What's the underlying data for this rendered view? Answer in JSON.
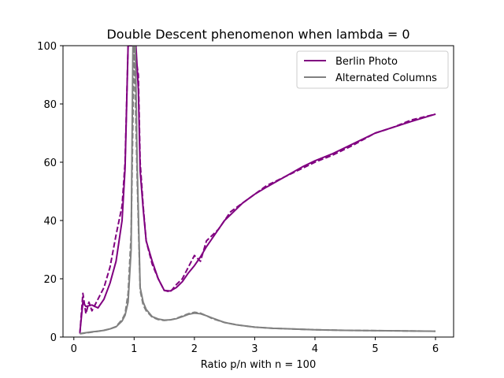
{
  "chart_data": {
    "type": "line",
    "title": "Double Descent phenomenon when lambda = 0",
    "xlabel": "Ratio p/n with n = 100",
    "ylabel": "",
    "xlim": [
      -0.18,
      6.3
    ],
    "ylim": [
      0,
      100
    ],
    "xticks": [
      0,
      1,
      2,
      3,
      4,
      5,
      6
    ],
    "yticks": [
      0,
      20,
      40,
      60,
      80,
      100
    ],
    "grid": false,
    "legend_position": "top-right",
    "legend": [
      {
        "label": "Berlin Photo",
        "color": "#800080"
      },
      {
        "label": "Alternated Columns",
        "color": "#808080"
      }
    ],
    "series": [
      {
        "name": "Berlin Photo",
        "color": "#800080",
        "style": "solid",
        "x": [
          0.1,
          0.15,
          0.2,
          0.3,
          0.4,
          0.5,
          0.6,
          0.7,
          0.8,
          0.85,
          0.9,
          0.93,
          0.97,
          1.0,
          1.03,
          1.07,
          1.1,
          1.15,
          1.2,
          1.3,
          1.4,
          1.5,
          1.6,
          1.7,
          1.8,
          1.9,
          2.0,
          2.1,
          2.2,
          2.3,
          2.4,
          2.5,
          2.6,
          2.8,
          3.0,
          3.2,
          3.5,
          3.8,
          4.0,
          4.3,
          4.6,
          5.0,
          5.3,
          5.6,
          6.0
        ],
        "y": [
          1.5,
          12,
          10.5,
          11,
          10,
          13,
          18.5,
          26,
          40,
          58,
          100,
          100,
          100,
          100,
          100,
          85,
          57,
          44,
          33,
          26,
          20,
          16,
          15.8,
          17,
          19,
          22,
          24.5,
          27.5,
          31,
          34,
          37,
          40,
          42,
          46,
          49,
          51.5,
          55,
          58.5,
          60.5,
          63,
          66,
          70,
          72,
          74,
          76.5
        ]
      },
      {
        "name": "",
        "color": "#800080",
        "style": "dashed",
        "x": [
          0.1,
          0.15,
          0.2,
          0.25,
          0.3,
          0.4,
          0.5,
          0.6,
          0.7,
          0.8,
          0.85,
          0.9,
          0.93,
          1.0,
          1.07,
          1.1,
          1.15,
          1.2,
          1.3,
          1.4,
          1.5,
          1.6,
          1.7,
          1.8,
          1.9,
          2.0,
          2.1,
          2.2,
          2.3,
          2.4,
          2.5,
          2.6,
          2.8,
          3.0,
          3.2,
          3.5,
          3.8,
          4.0,
          4.3,
          4.6,
          5.0,
          5.3,
          5.6,
          6.0
        ],
        "y": [
          1.2,
          15,
          8,
          12,
          9,
          13,
          17,
          24,
          35,
          45,
          60,
          100,
          100,
          100,
          90,
          60,
          45,
          33,
          25,
          20,
          16,
          15.5,
          18,
          20,
          24,
          28,
          26,
          33,
          35,
          37,
          40,
          43,
          46,
          49,
          52,
          55,
          58,
          60,
          62.5,
          65.5,
          70,
          72,
          74.5,
          76.5
        ]
      },
      {
        "name": "Alternated Columns",
        "color": "#808080",
        "style": "solid",
        "x": [
          0.1,
          0.2,
          0.3,
          0.4,
          0.5,
          0.6,
          0.7,
          0.8,
          0.85,
          0.9,
          0.95,
          0.98,
          1.0,
          1.02,
          1.05,
          1.1,
          1.15,
          1.2,
          1.3,
          1.4,
          1.5,
          1.6,
          1.7,
          1.8,
          1.9,
          2.0,
          2.1,
          2.2,
          2.3,
          2.5,
          2.7,
          3.0,
          3.3,
          3.6,
          4.0,
          4.5,
          5.0,
          5.5,
          6.0
        ],
        "y": [
          1.2,
          1.5,
          1.8,
          2.0,
          2.3,
          2.8,
          3.5,
          5.5,
          7.5,
          12,
          30,
          100,
          100,
          100,
          60,
          17,
          12,
          9.5,
          7,
          6.2,
          5.8,
          5.9,
          6.3,
          7,
          7.8,
          8.2,
          8,
          7.3,
          6.5,
          5,
          4.2,
          3.4,
          3,
          2.8,
          2.5,
          2.3,
          2.2,
          2.1,
          2.0
        ]
      },
      {
        "name": "",
        "color": "#808080",
        "style": "dashed",
        "x": [
          0.1,
          0.2,
          0.3,
          0.4,
          0.5,
          0.6,
          0.7,
          0.8,
          0.85,
          0.9,
          0.95,
          1.0,
          1.05,
          1.1,
          1.15,
          1.2,
          1.3,
          1.4,
          1.5,
          1.6,
          1.7,
          1.8,
          1.9,
          2.0,
          2.1,
          2.2,
          2.3,
          2.5,
          2.7,
          3.0,
          3.3,
          3.6,
          4.0,
          4.5,
          5.0,
          5.5,
          6.0
        ],
        "y": [
          1.1,
          1.4,
          1.7,
          2.0,
          2.3,
          2.8,
          3.6,
          6,
          8,
          15,
          35,
          100,
          55,
          16,
          11,
          9,
          6.8,
          6,
          5.7,
          5.9,
          6.4,
          7.2,
          8,
          8.5,
          8.2,
          7.3,
          6.3,
          5,
          4.2,
          3.4,
          3,
          2.8,
          2.5,
          2.3,
          2.2,
          2.1,
          2.0
        ]
      }
    ]
  }
}
